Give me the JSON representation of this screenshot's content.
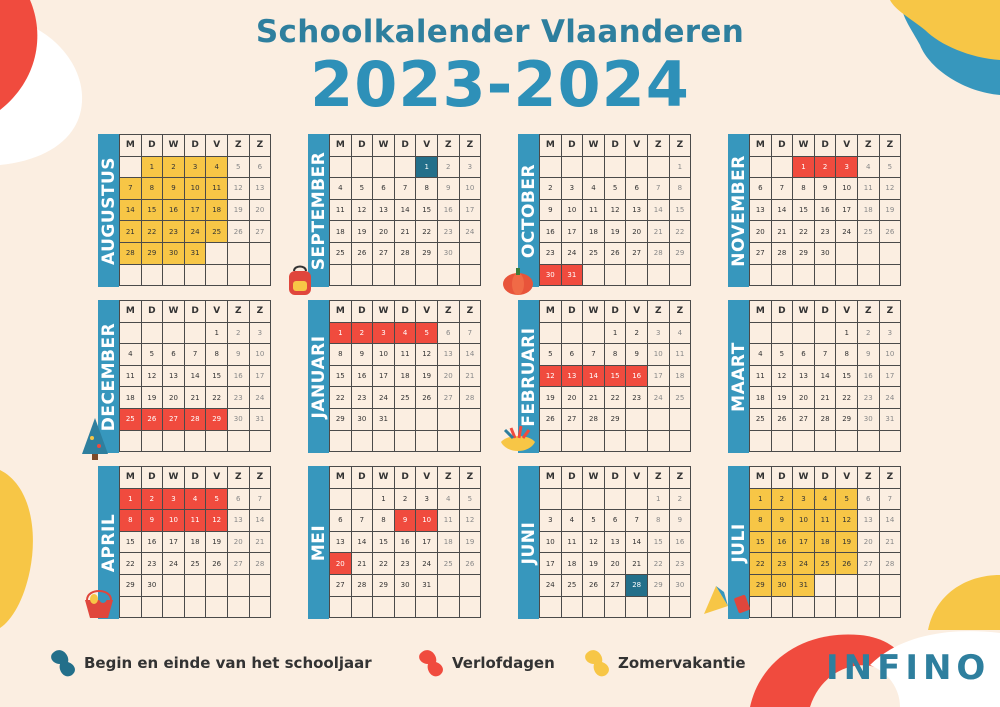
{
  "title": "Schoolkalender Vlaanderen",
  "year": "2023-2024",
  "brand": "INFINO",
  "weekdays": [
    "M",
    "D",
    "W",
    "D",
    "V",
    "Z",
    "Z"
  ],
  "colors": {
    "begin_end": "#236f8a",
    "leave": "#f04b3e",
    "summer": "#f7c646",
    "label_bg": "#3797bd",
    "background": "#fbeee1"
  },
  "legend": [
    {
      "label": "Begin en einde van het schooljaar",
      "color": "#236f8a"
    },
    {
      "label": "Verlofdagen",
      "color": "#f04b3e"
    },
    {
      "label": "Zomervakantie",
      "color": "#f7c646"
    }
  ],
  "months": [
    {
      "name": "AUGUSTUS",
      "days": 31,
      "offset": 1,
      "summer": [
        1,
        2,
        3,
        4,
        7,
        8,
        9,
        10,
        11,
        14,
        15,
        16,
        17,
        18,
        21,
        22,
        23,
        24,
        25,
        28,
        29,
        30,
        31
      ],
      "leave": [],
      "begin_end": []
    },
    {
      "name": "SEPTEMBER",
      "days": 30,
      "offset": 4,
      "summer": [],
      "leave": [],
      "begin_end": [
        1
      ]
    },
    {
      "name": "OCTOBER",
      "days": 31,
      "offset": 6,
      "summer": [],
      "leave": [
        30,
        31
      ],
      "begin_end": []
    },
    {
      "name": "NOVEMBER",
      "days": 30,
      "offset": 2,
      "summer": [],
      "leave": [
        1,
        2,
        3
      ],
      "begin_end": []
    },
    {
      "name": "DECEMBER",
      "days": 31,
      "offset": 4,
      "summer": [],
      "leave": [
        25,
        26,
        27,
        28,
        29
      ],
      "begin_end": []
    },
    {
      "name": "JANUARI",
      "days": 31,
      "offset": 0,
      "summer": [],
      "leave": [
        1,
        2,
        3,
        4,
        5
      ],
      "begin_end": []
    },
    {
      "name": "FEBRUARI",
      "days": 29,
      "offset": 3,
      "summer": [],
      "leave": [
        12,
        13,
        14,
        15,
        16
      ],
      "begin_end": []
    },
    {
      "name": "MAART",
      "days": 31,
      "offset": 4,
      "summer": [],
      "leave": [],
      "begin_end": []
    },
    {
      "name": "APRIL",
      "days": 30,
      "offset": 0,
      "summer": [],
      "leave": [
        1,
        2,
        3,
        4,
        5,
        8,
        9,
        10,
        11,
        12
      ],
      "begin_end": []
    },
    {
      "name": "MEI",
      "days": 31,
      "offset": 2,
      "summer": [],
      "leave": [
        9,
        10,
        20
      ],
      "begin_end": []
    },
    {
      "name": "JUNI",
      "days": 30,
      "offset": 5,
      "summer": [],
      "leave": [],
      "begin_end": [
        28
      ]
    },
    {
      "name": "JULI",
      "days": 31,
      "offset": 0,
      "summer": [
        1,
        2,
        3,
        4,
        5,
        8,
        9,
        10,
        11,
        12,
        15,
        16,
        17,
        18,
        19,
        22,
        23,
        24,
        25,
        26,
        29,
        30,
        31
      ],
      "leave": [],
      "begin_end": []
    }
  ],
  "decorations": [
    {
      "icon": "backpack-icon"
    },
    {
      "icon": "pumpkin-icon"
    },
    {
      "icon": "christmas-tree-icon"
    },
    {
      "icon": "carnival-mask-icon"
    },
    {
      "icon": "easter-basket-icon"
    },
    {
      "icon": "beach-umbrella-icon"
    }
  ]
}
